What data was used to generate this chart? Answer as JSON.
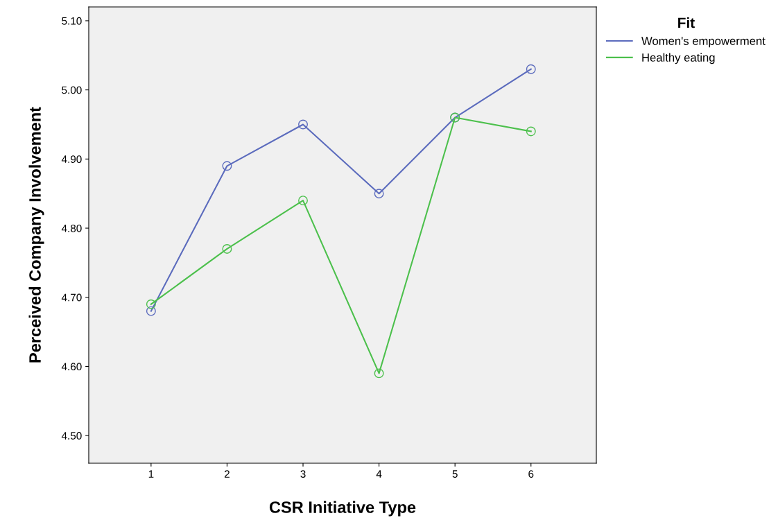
{
  "chart_data": {
    "type": "line",
    "xlabel": "CSR Initiative Type",
    "ylabel": "Perceived Company Involvement",
    "legend_title": "Fit",
    "categories": [
      "1",
      "2",
      "3",
      "4",
      "5",
      "6"
    ],
    "series": [
      {
        "name": "Women's empowerment",
        "color": "#5b6bbd",
        "values": [
          4.68,
          4.89,
          4.95,
          4.85,
          4.96,
          5.03
        ]
      },
      {
        "name": "Healthy eating",
        "color": "#4cc04c",
        "values": [
          4.69,
          4.77,
          4.84,
          4.59,
          4.96,
          4.94
        ]
      }
    ],
    "ylim": [
      4.46,
      5.12
    ],
    "yticks": [
      {
        "value": 4.5,
        "label": "4.50"
      },
      {
        "value": 4.6,
        "label": "4.60"
      },
      {
        "value": 4.7,
        "label": "4.70"
      },
      {
        "value": 4.8,
        "label": "4.80"
      },
      {
        "value": 4.9,
        "label": "4.90"
      },
      {
        "value": 5.0,
        "label": "5.00"
      },
      {
        "value": 5.1,
        "label": "5.10"
      }
    ],
    "marker": "circle",
    "line_style": "solid",
    "grid": false,
    "legend": "top right"
  }
}
